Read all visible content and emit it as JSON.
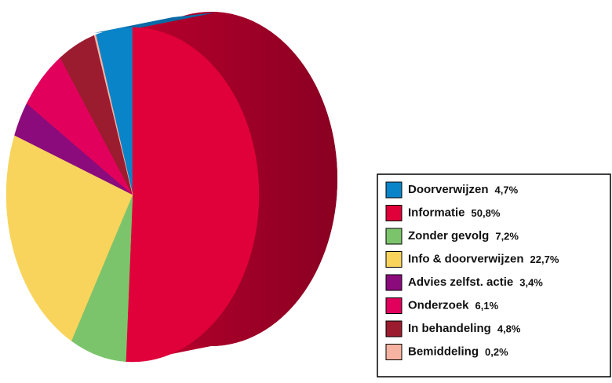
{
  "chart_data": {
    "type": "pie",
    "categories": [
      "Doorverwijzen",
      "Informatie",
      "Zonder gevolg",
      "Info & doorverwijzen",
      "Advies zelfst. actie",
      "Onderzoek",
      "In behandeling",
      "Bemiddeling"
    ],
    "values": [
      4.7,
      50.8,
      7.2,
      22.7,
      3.4,
      6.1,
      4.8,
      0.2
    ],
    "value_labels": [
      "4,7%",
      "50,8%",
      "7,2%",
      "22,7%",
      "3,4%",
      "6,1%",
      "4,8%",
      "0,2%"
    ],
    "colors": [
      "#0a84c9",
      "#e0003a",
      "#7cc46c",
      "#f8d45c",
      "#8b0b7c",
      "#e1005c",
      "#9b1c2f",
      "#f7b3a1"
    ],
    "legend": "right"
  }
}
